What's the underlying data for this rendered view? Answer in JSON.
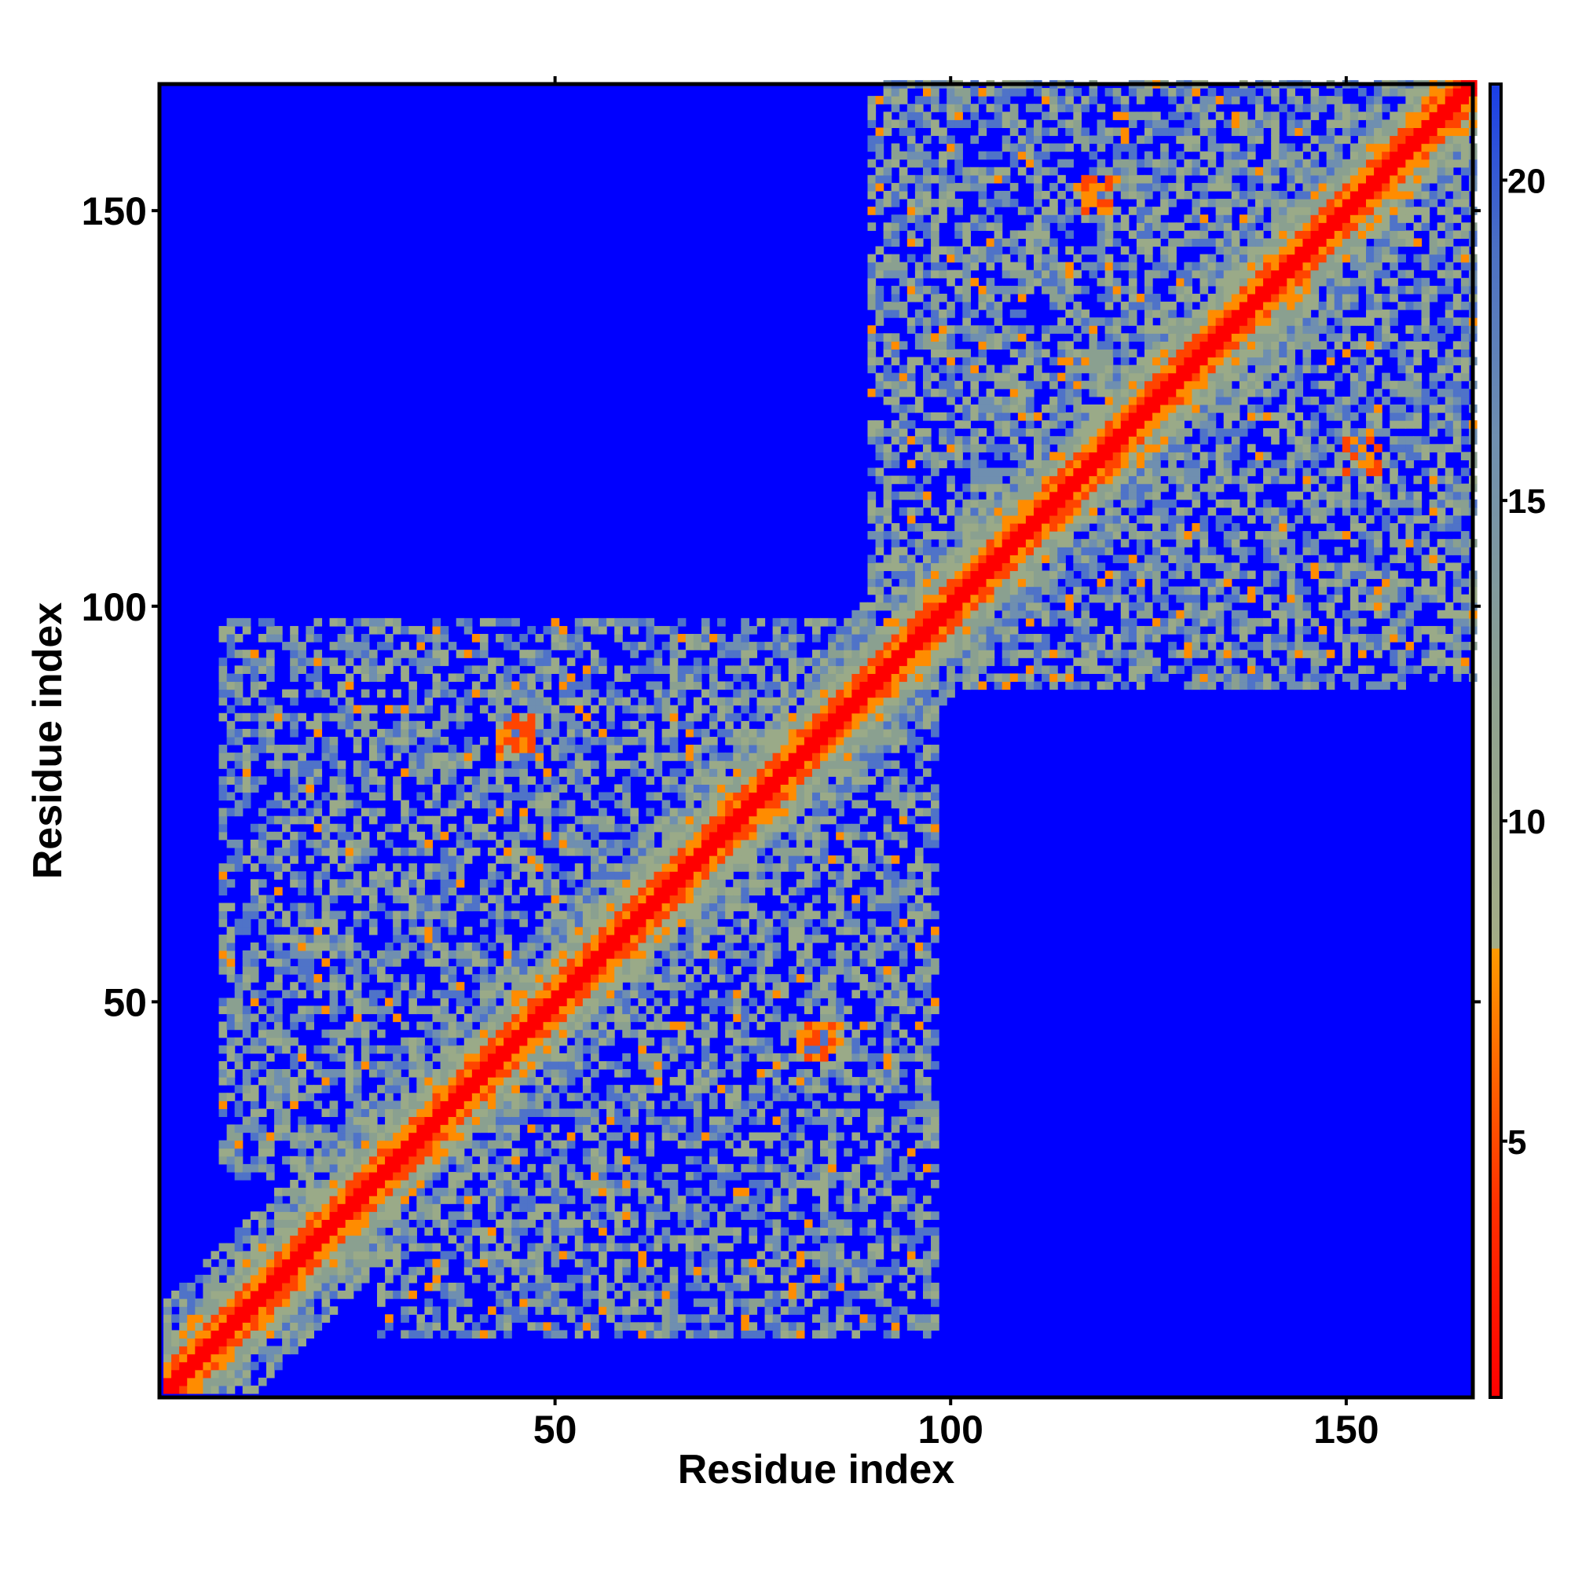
{
  "chart_data": {
    "type": "heatmap",
    "title": "",
    "xlabel": "Residue index",
    "ylabel": "Residue index",
    "n_residues": 166,
    "xlim": [
      1,
      166
    ],
    "ylim": [
      1,
      166
    ],
    "x_ticks": [
      50,
      100,
      150
    ],
    "y_ticks": [
      50,
      100,
      150
    ],
    "colorbar": {
      "ticks": [
        5,
        10,
        15,
        20
      ],
      "range": [
        1,
        21.5
      ],
      "cutoff": 8,
      "low_colors": [
        "#ff0000",
        "#ff4400",
        "#ff8c00"
      ],
      "high_colors": [
        "#9aaa88",
        "#8aa090",
        "#6f8fb0",
        "#4f73c8"
      ],
      "background_color": "#0000ff"
    },
    "contact_clusters": [
      {
        "x": [
          28,
          98
        ],
        "y": [
          8,
          95
        ],
        "level": 0.55
      },
      {
        "x": [
          97,
          166
        ],
        "y": [
          90,
          166
        ],
        "level": 0.6
      },
      {
        "x": [
          44,
          47
        ],
        "y": [
          82,
          86
        ],
        "level": 1.0
      },
      {
        "x": [
          81,
          84
        ],
        "y": [
          43,
          47
        ],
        "level": 1.0
      },
      {
        "x": [
          113,
          117
        ],
        "y": [
          113,
          118
        ],
        "level": 1.0
      },
      {
        "x": [
          117,
          121
        ],
        "y": [
          151,
          154
        ],
        "level": 0.9
      },
      {
        "x": [
          150,
          154
        ],
        "y": [
          117,
          121
        ],
        "level": 0.9
      },
      {
        "x": [
          24,
          30
        ],
        "y": [
          24,
          30
        ],
        "level": 0.9
      }
    ]
  },
  "axes": {
    "x_title": "Residue index",
    "y_title": "Residue index"
  }
}
